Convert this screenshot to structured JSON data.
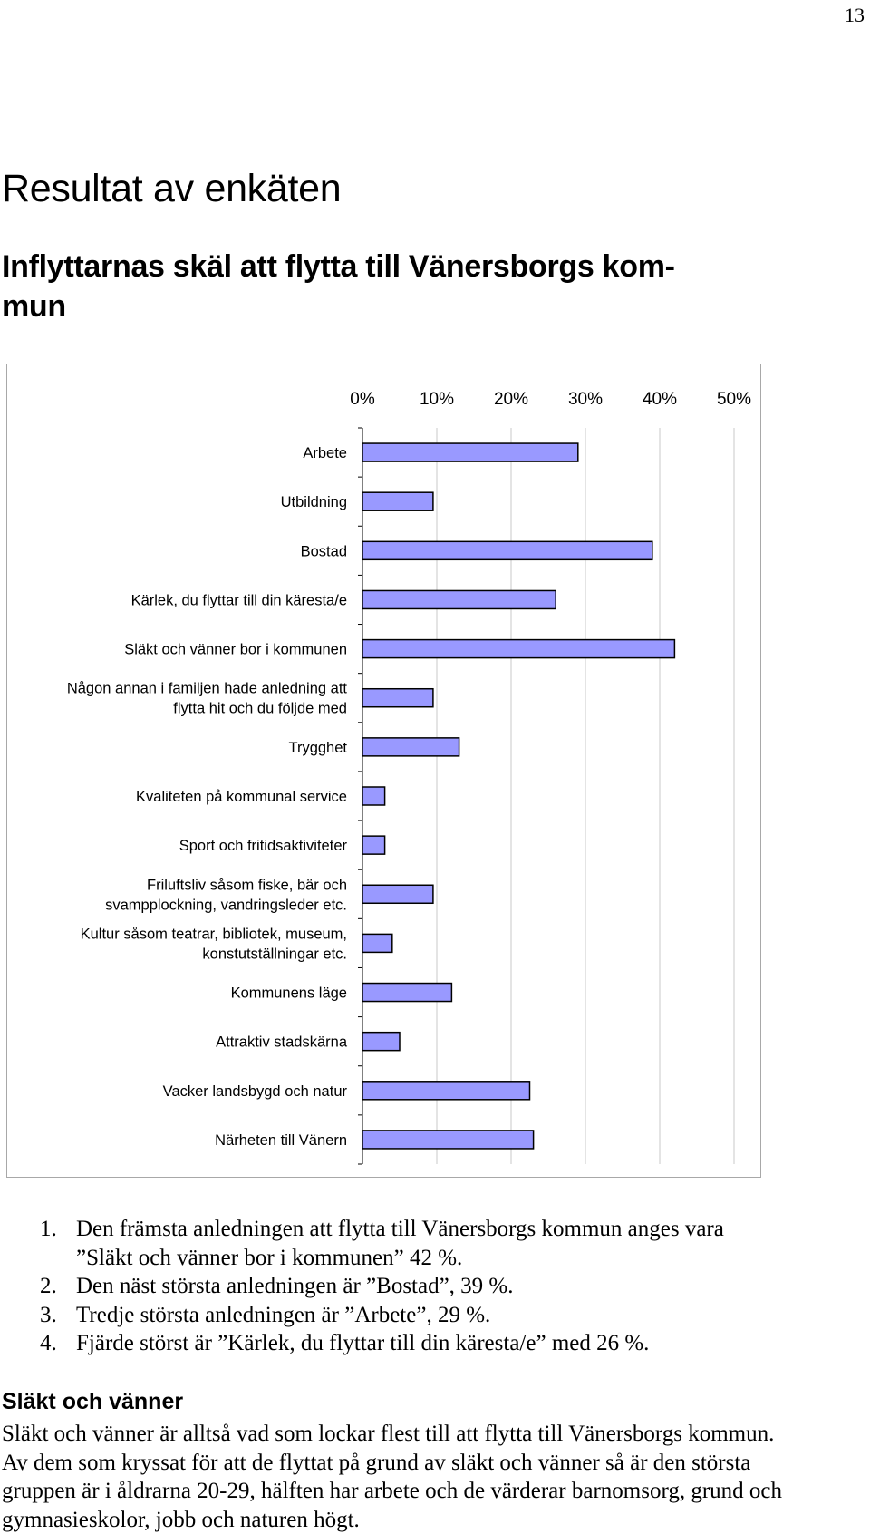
{
  "page": {
    "number": "13",
    "title": "Resultat av enkäten",
    "subtitle_line1": "Inflyttarnas skäl att flytta till Vänersborgs kom-",
    "subtitle_line2": "mun"
  },
  "chart_data": {
    "type": "bar",
    "orientation": "horizontal",
    "axis_position": "top",
    "xlim": [
      0,
      50
    ],
    "ticks": [
      "0%",
      "10%",
      "20%",
      "30%",
      "40%",
      "50%"
    ],
    "categories": [
      [
        "Arbete"
      ],
      [
        "Utbildning"
      ],
      [
        "Bostad"
      ],
      [
        "Kärlek, du flyttar till din käresta/e"
      ],
      [
        "Släkt och vänner bor i kommunen"
      ],
      [
        "Någon annan i familjen hade anledning att",
        "flytta hit och du följde med"
      ],
      [
        "Trygghet"
      ],
      [
        "Kvaliteten på kommunal service"
      ],
      [
        "Sport och fritidsaktiviteter"
      ],
      [
        "Friluftsliv såsom fiske, bär och",
        "svampplockning, vandringsleder etc."
      ],
      [
        "Kultur såsom teatrar, bibliotek, museum,",
        "konstutställningar etc."
      ],
      [
        "Kommunens läge"
      ],
      [
        "Attraktiv stadskärna"
      ],
      [
        "Vacker landsbygd och natur"
      ],
      [
        "Närheten till Vänern"
      ]
    ],
    "values": [
      29,
      9.5,
      39,
      26,
      42,
      9.5,
      13,
      3,
      3,
      9.5,
      4,
      12,
      5,
      22.5,
      23
    ],
    "bar_color": "#9999ff",
    "grid": true
  },
  "findings": [
    {
      "num": "1.",
      "text": "Den främsta anledningen att flytta till Vänersborgs kommun anges vara ”Släkt och vänner bor i kommunen” 42 %."
    },
    {
      "num": "2.",
      "text": "Den näst största anledningen är ”Bostad”, 39 %."
    },
    {
      "num": "3.",
      "text": "Tredje största anledningen är ”Arbete”, 29 %."
    },
    {
      "num": "4.",
      "text": "Fjärde störst är ”Kärlek, du flyttar till din käresta/e” med 26 %."
    }
  ],
  "section": {
    "heading": "Släkt och vänner",
    "paragraph": "Släkt och vänner är alltså vad som lockar flest till att flytta till Vänersborgs kommun. Av dem som kryssat för att de flyttat på grund av släkt och vänner så är den största gruppen är i åldrarna 20-29, hälften har arbete och de värderar barnomsorg, grund och gymnasieskolor, jobb och naturen högt."
  }
}
